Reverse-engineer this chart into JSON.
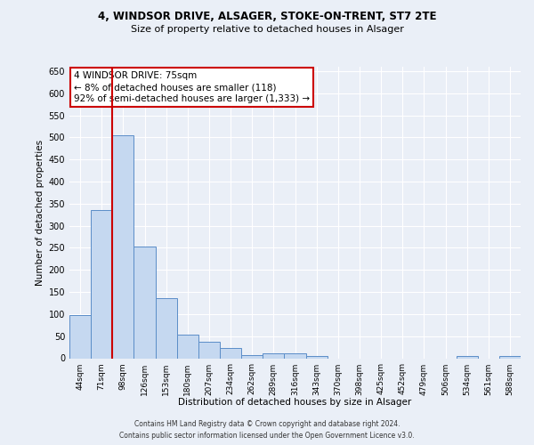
{
  "title1": "4, WINDSOR DRIVE, ALSAGER, STOKE-ON-TRENT, ST7 2TE",
  "title2": "Size of property relative to detached houses in Alsager",
  "xlabel": "Distribution of detached houses by size in Alsager",
  "ylabel": "Number of detached properties",
  "bar_labels": [
    "44sqm",
    "71sqm",
    "98sqm",
    "126sqm",
    "153sqm",
    "180sqm",
    "207sqm",
    "234sqm",
    "262sqm",
    "289sqm",
    "316sqm",
    "343sqm",
    "370sqm",
    "398sqm",
    "425sqm",
    "452sqm",
    "479sqm",
    "506sqm",
    "534sqm",
    "561sqm",
    "588sqm"
  ],
  "bar_values": [
    98,
    335,
    505,
    253,
    137,
    53,
    38,
    23,
    8,
    11,
    11,
    6,
    0,
    0,
    0,
    0,
    0,
    0,
    6,
    0,
    6
  ],
  "bar_color": "#c5d8f0",
  "bar_edge_color": "#5b8dc8",
  "ylim": [
    0,
    660
  ],
  "yticks": [
    0,
    50,
    100,
    150,
    200,
    250,
    300,
    350,
    400,
    450,
    500,
    550,
    600,
    650
  ],
  "vline_color": "#cc0000",
  "annotation_text": "4 WINDSOR DRIVE: 75sqm\n← 8% of detached houses are smaller (118)\n92% of semi-detached houses are larger (1,333) →",
  "annotation_box_color": "#ffffff",
  "annotation_box_edge_color": "#cc0000",
  "footnote1": "Contains HM Land Registry data © Crown copyright and database right 2024.",
  "footnote2": "Contains public sector information licensed under the Open Government Licence v3.0.",
  "bg_color": "#eaeff7",
  "plot_bg_color": "#eaeff7",
  "grid_color": "#ffffff"
}
